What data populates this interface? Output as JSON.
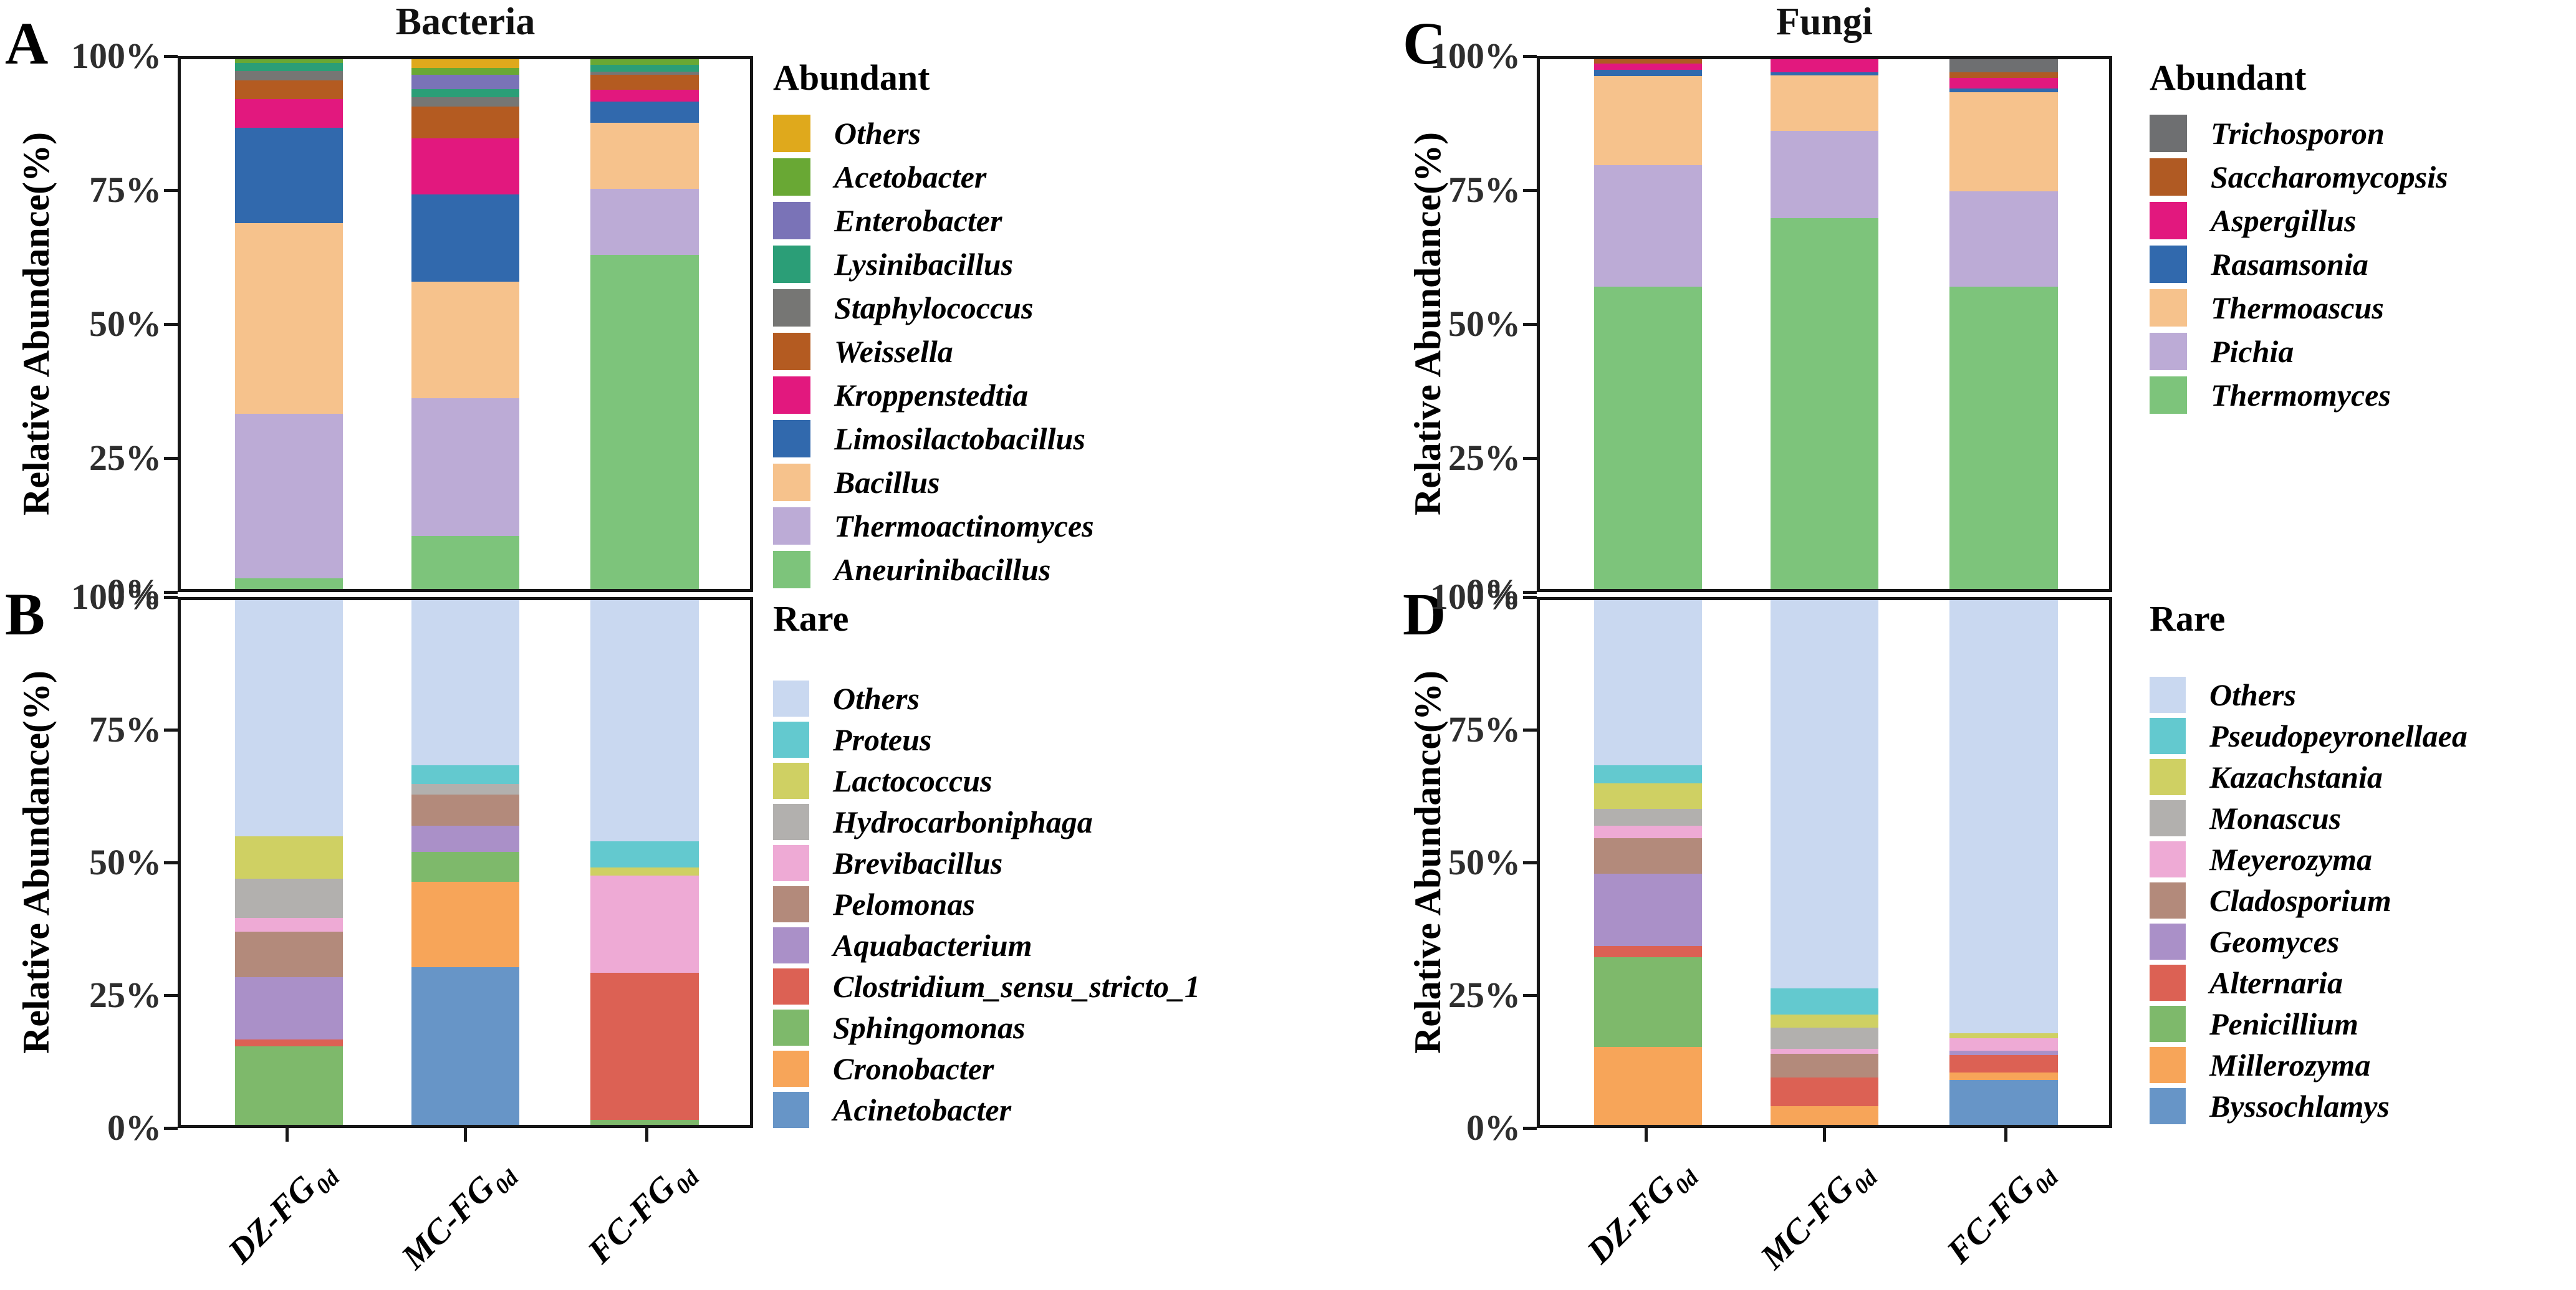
{
  "figure": {
    "group_titles": [
      "Bacteria",
      "Fungi"
    ]
  },
  "panels": [
    {
      "letter": "A",
      "ylabel": "Relative Abundance(%)",
      "legend_title": "Abundant"
    },
    {
      "letter": "B",
      "ylabel": "Relative Abundance(%)",
      "legend_title": "Rare"
    },
    {
      "letter": "C",
      "ylabel": "Relative Abundance(%)",
      "legend_title": "Abundant"
    },
    {
      "letter": "D",
      "ylabel": "Relative Abundance(%)",
      "legend_title": "Rare"
    }
  ],
  "axis": {
    "ticks": [
      {
        "label": "100%",
        "value": 100
      },
      {
        "label": "75%",
        "value": 75
      },
      {
        "label": "50%",
        "value": 50
      },
      {
        "label": "25%",
        "value": 25
      },
      {
        "label": "0%",
        "value": 0
      }
    ]
  },
  "categories": [
    {
      "base": "DZ-FG",
      "sub": "0d"
    },
    {
      "base": "MC-FG",
      "sub": "0d"
    },
    {
      "base": "FC-FG",
      "sub": "0d"
    }
  ],
  "chart_data": [
    {
      "type": "bar",
      "stacked": true,
      "panel": "A",
      "title": "Bacteria",
      "ylabel": "Relative Abundance(%)",
      "ylim": [
        0,
        100
      ],
      "legend_title": "Abundant",
      "stack_order": "first series listed is drawn at the top of each bar",
      "categories": [
        "DZ-FG0d",
        "MC-FG0d",
        "FC-FG0d"
      ],
      "series": [
        {
          "name": "Others",
          "color": "#dfa91c",
          "values": [
            0,
            1.7,
            0
          ]
        },
        {
          "name": "Acetobacter",
          "color": "#69a834",
          "values": [
            0.7,
            1.2,
            1.0
          ]
        },
        {
          "name": "Enterobacter",
          "color": "#7a73b7",
          "values": [
            0,
            2.8,
            0
          ]
        },
        {
          "name": "Lysinibacillus",
          "color": "#2b9e77",
          "values": [
            1.5,
            1.5,
            1.4
          ]
        },
        {
          "name": "Staphylococcus",
          "color": "#767674",
          "values": [
            1.8,
            1.8,
            0.6
          ]
        },
        {
          "name": "Weissella",
          "color": "#b45b21",
          "values": [
            3.5,
            6.0,
            2.8
          ]
        },
        {
          "name": "Kroppenstedtia",
          "color": "#e2187e",
          "values": [
            5.5,
            10.5,
            2.2
          ]
        },
        {
          "name": "Limosilactobacillus",
          "color": "#3169ad",
          "values": [
            18.0,
            16.5,
            4.0
          ]
        },
        {
          "name": "Bacillus",
          "color": "#f6c28c",
          "values": [
            36.0,
            22.0,
            12.5
          ]
        },
        {
          "name": "Thermoactinomyces",
          "color": "#bcabd6",
          "values": [
            31.0,
            26.0,
            12.5
          ]
        },
        {
          "name": "Aneurinibacillus",
          "color": "#7dc47b",
          "values": [
            2.0,
            10.0,
            63.0
          ]
        }
      ]
    },
    {
      "type": "bar",
      "stacked": true,
      "panel": "B",
      "ylabel": "Relative Abundance(%)",
      "ylim": [
        0,
        100
      ],
      "legend_title": "Rare",
      "stack_order": "first series listed is drawn at the top of each bar",
      "categories": [
        "DZ-FG0d",
        "MC-FG0d",
        "FC-FG0d"
      ],
      "series": [
        {
          "name": "Others",
          "color": "#c9d8f0",
          "values": [
            45.0,
            31.5,
            46.0
          ]
        },
        {
          "name": "Proteus",
          "color": "#63c9cf",
          "values": [
            0,
            3.5,
            5.0
          ]
        },
        {
          "name": "Lactococcus",
          "color": "#cfd063",
          "values": [
            8.1,
            0,
            1.5
          ]
        },
        {
          "name": "Hydrocarboniphaga",
          "color": "#b2b0ae",
          "values": [
            7.5,
            2.0,
            0
          ]
        },
        {
          "name": "Brevibacillus",
          "color": "#eeaad5",
          "values": [
            2.6,
            0,
            18.5
          ]
        },
        {
          "name": "Pelomonas",
          "color": "#b38a7b",
          "values": [
            8.6,
            6.0,
            0
          ]
        },
        {
          "name": "Aquabacterium",
          "color": "#aa90c8",
          "values": [
            11.9,
            5.0,
            0
          ]
        },
        {
          "name": "Clostridium_sensu_stricto_1",
          "color": "#dc6154",
          "values": [
            1.3,
            0,
            28.0
          ]
        },
        {
          "name": "Sphingomonas",
          "color": "#7eb96b",
          "values": [
            15.0,
            5.7,
            1.0
          ]
        },
        {
          "name": "Cronobacter",
          "color": "#f7a559",
          "values": [
            0,
            16.3,
            0
          ]
        },
        {
          "name": "Acinetobacter",
          "color": "#6795c7",
          "values": [
            0,
            30.0,
            0
          ]
        }
      ]
    },
    {
      "type": "bar",
      "stacked": true,
      "panel": "C",
      "title": "Fungi",
      "ylabel": "Relative Abundance(%)",
      "ylim": [
        0,
        100
      ],
      "legend_title": "Abundant",
      "stack_order": "first series listed is drawn at the top of each bar",
      "categories": [
        "DZ-FG0d",
        "MC-FG0d",
        "FC-FG0d"
      ],
      "series": [
        {
          "name": "Trichosporon",
          "color": "#6e6f71",
          "values": [
            0,
            0,
            2.5
          ]
        },
        {
          "name": "Saccharomycopsis",
          "color": "#b05a23",
          "values": [
            0.8,
            0,
            1.0
          ]
        },
        {
          "name": "Aspergillus",
          "color": "#e2187e",
          "values": [
            1.2,
            2.5,
            2.0
          ]
        },
        {
          "name": "Rasamsonia",
          "color": "#3169ad",
          "values": [
            1.2,
            0.5,
            0.7
          ]
        },
        {
          "name": "Thermoascus",
          "color": "#f6c28c",
          "values": [
            16.8,
            10.5,
            18.8
          ]
        },
        {
          "name": "Pichia",
          "color": "#bcabd6",
          "values": [
            23.0,
            16.5,
            18.0
          ]
        },
        {
          "name": "Thermomyces",
          "color": "#7dc47b",
          "values": [
            57.0,
            70.0,
            57.0
          ]
        }
      ]
    },
    {
      "type": "bar",
      "stacked": true,
      "panel": "D",
      "ylabel": "Relative Abundance(%)",
      "ylim": [
        0,
        100
      ],
      "legend_title": "Rare",
      "stack_order": "first series listed is drawn at the top of each bar",
      "categories": [
        "DZ-FG0d",
        "MC-FG0d",
        "FC-FG0d"
      ],
      "series": [
        {
          "name": "Others",
          "color": "#c9d8f0",
          "values": [
            31.5,
            74.0,
            82.5
          ]
        },
        {
          "name": "Pseudopeyronellaea",
          "color": "#63c9cf",
          "values": [
            3.4,
            5.0,
            0
          ]
        },
        {
          "name": "Kazachstania",
          "color": "#cfd063",
          "values": [
            4.9,
            2.5,
            1.0
          ]
        },
        {
          "name": "Monascus",
          "color": "#b2b0ae",
          "values": [
            3.2,
            4.0,
            0
          ]
        },
        {
          "name": "Meyerozyma",
          "color": "#eeaad5",
          "values": [
            2.4,
            1.0,
            2.4
          ]
        },
        {
          "name": "Cladosporium",
          "color": "#b38a7b",
          "values": [
            6.7,
            4.5,
            0
          ]
        },
        {
          "name": "Geomyces",
          "color": "#aa90c8",
          "values": [
            13.8,
            0,
            0.8
          ]
        },
        {
          "name": "Alternaria",
          "color": "#dc6154",
          "values": [
            2.1,
            5.5,
            3.3
          ]
        },
        {
          "name": "Penicillium",
          "color": "#7eb96b",
          "values": [
            17.2,
            0,
            0
          ]
        },
        {
          "name": "Millerozyma",
          "color": "#f7a559",
          "values": [
            14.8,
            3.5,
            1.5
          ]
        },
        {
          "name": "Byssochlamys",
          "color": "#6795c7",
          "values": [
            0,
            0,
            8.5
          ]
        }
      ]
    }
  ]
}
